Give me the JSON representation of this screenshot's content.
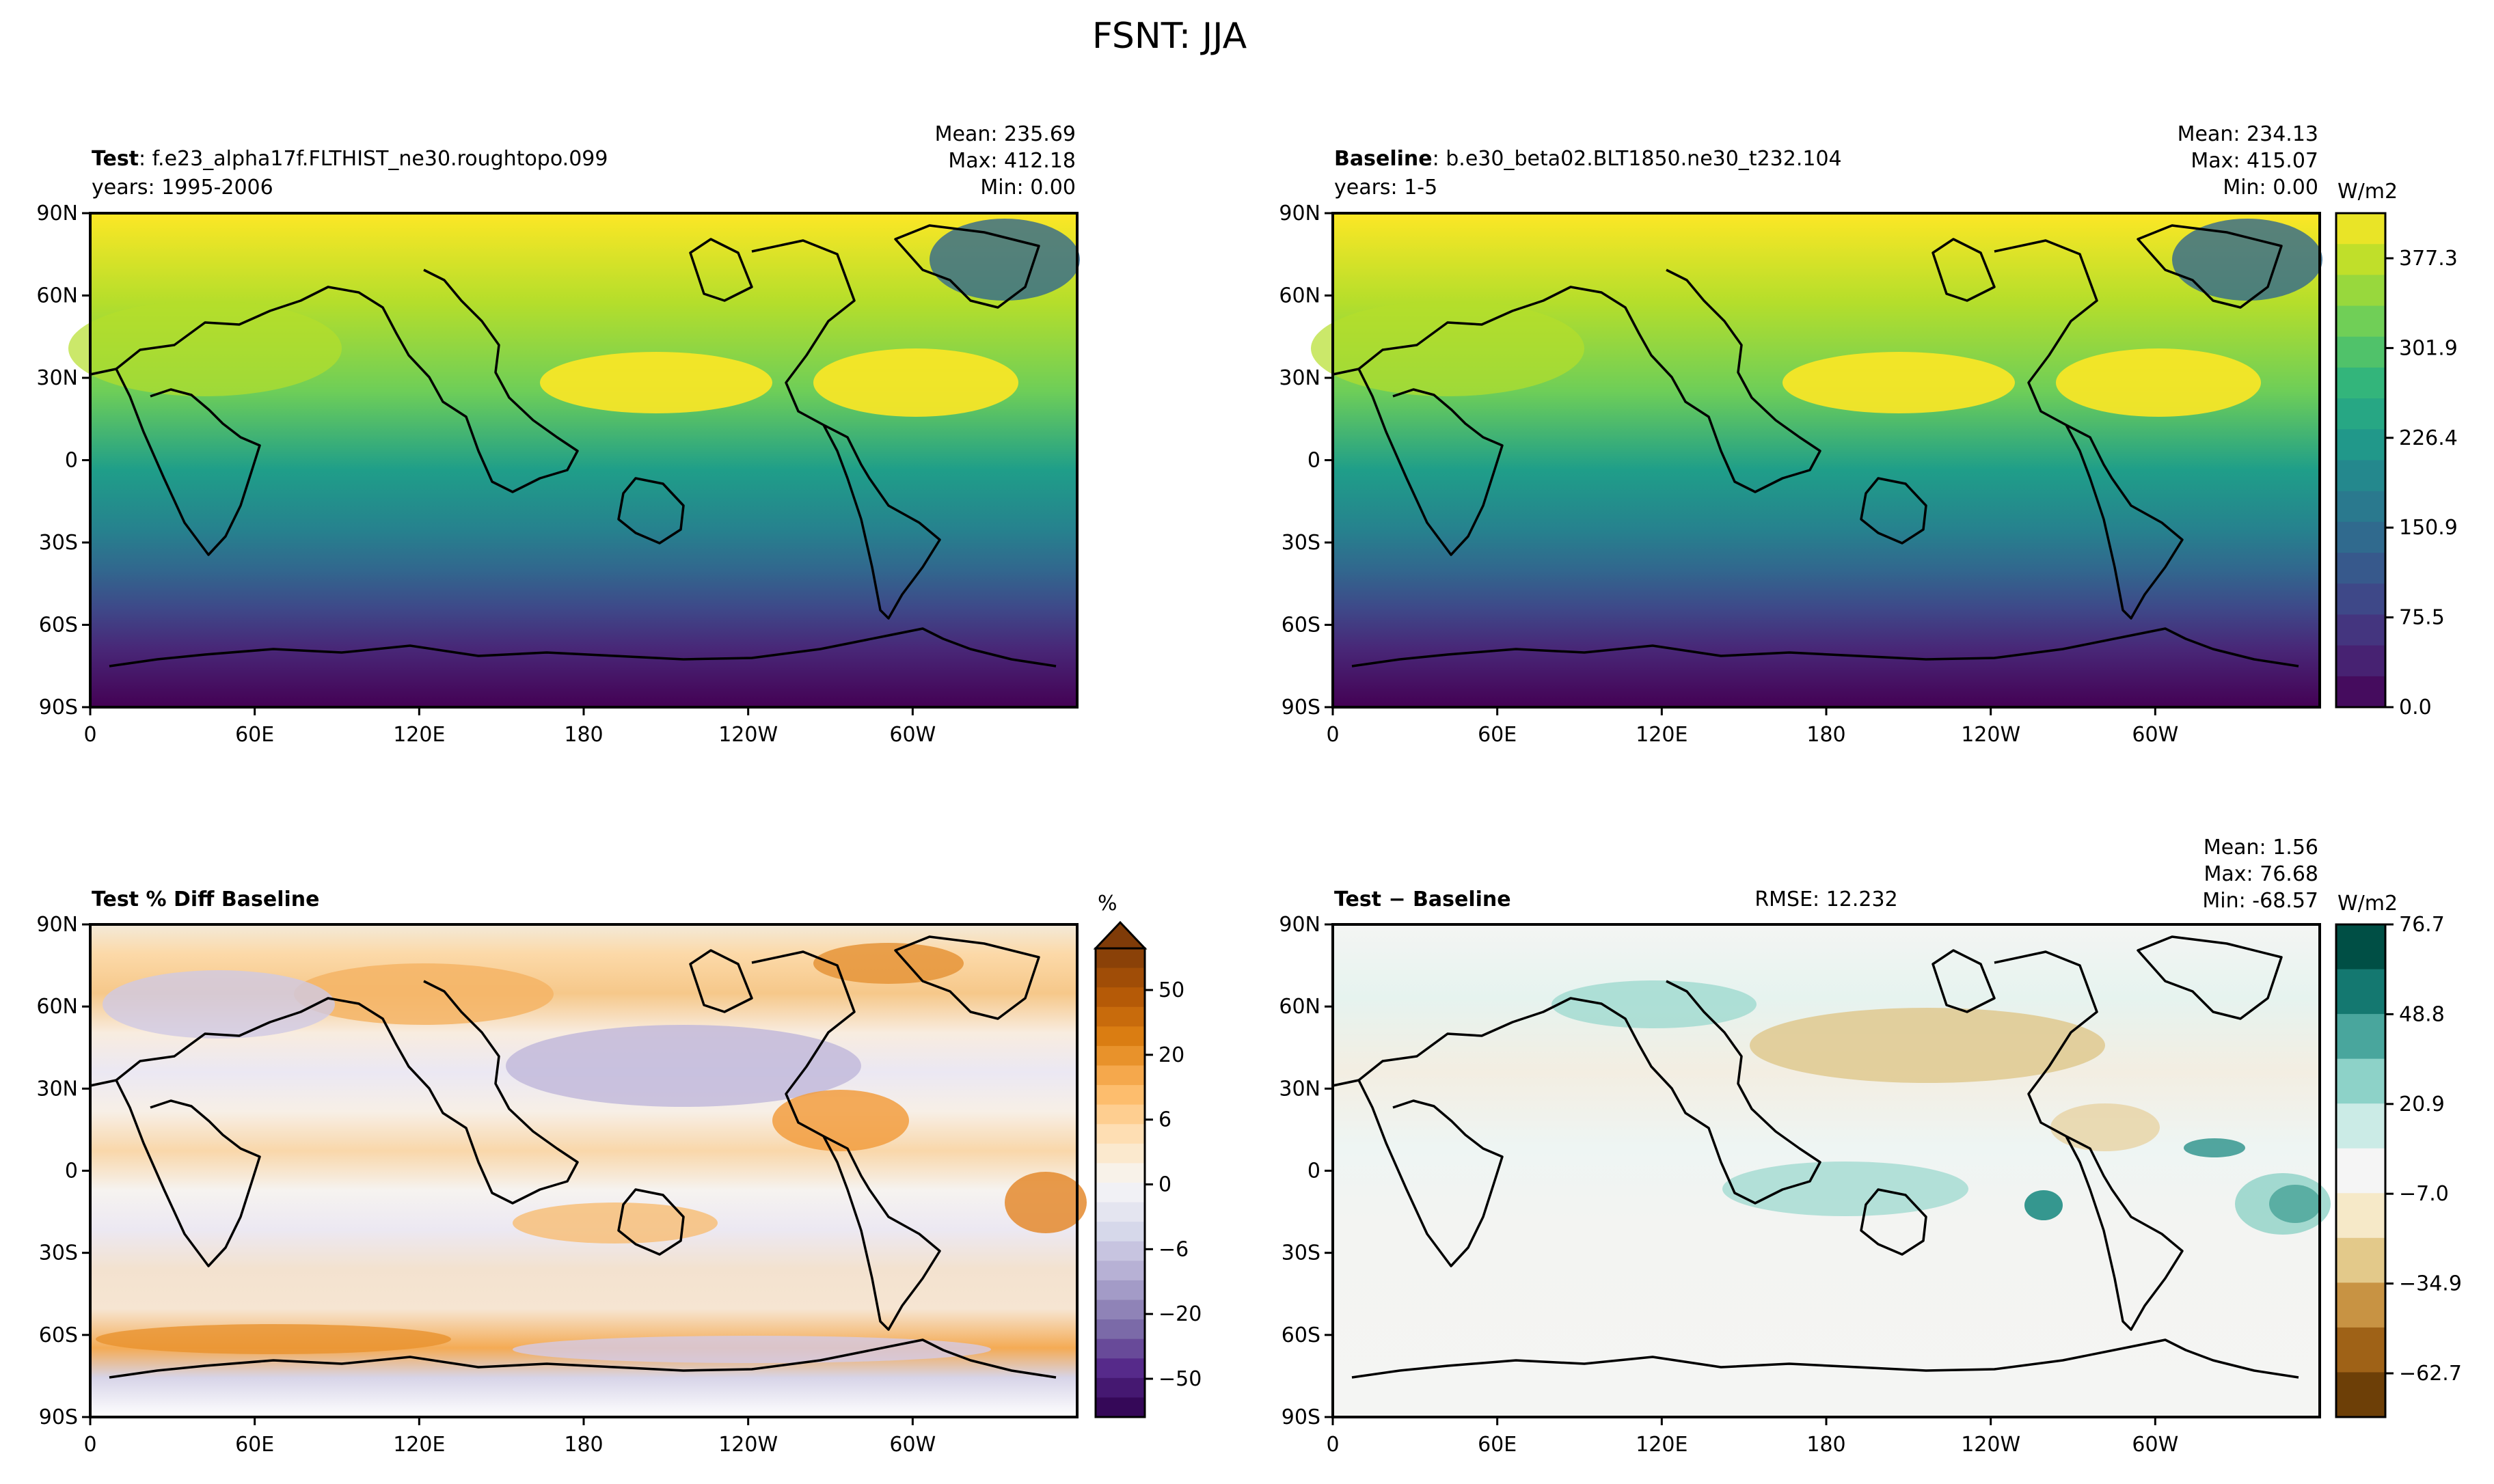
{
  "figure": {
    "title": "FSNT: JJA"
  },
  "colors": {
    "background": "#ffffff",
    "frame": "#000000",
    "coast": "#000000",
    "viridis_ramp": [
      "#440154",
      "#482878",
      "#3e4989",
      "#31688e",
      "#26828e",
      "#1f9e89",
      "#35b779",
      "#6ece58",
      "#b5de2b",
      "#fde725"
    ],
    "puor_ramp": [
      "#2d004b",
      "#542788",
      "#8073ac",
      "#b2abd2",
      "#d8daeb",
      "#f7f7f7",
      "#fee0b6",
      "#fdb863",
      "#e08214",
      "#b35806",
      "#7f3b08"
    ],
    "brbg_ramp": [
      "#543005",
      "#8c510a",
      "#bf812d",
      "#dfc27d",
      "#f6e8c3",
      "#f5f5f5",
      "#c7eae5",
      "#80cdc1",
      "#35978f",
      "#01665e",
      "#003c30"
    ]
  },
  "chart_data": [
    {
      "id": "test",
      "type": "map-contour",
      "title_bold": "Test",
      "title_rest": ": f.e23_alpha17f.FLTHIST_ne30.roughtopo.099",
      "subtitle": "years: 1995-2006",
      "stats": [
        "Mean: 235.69",
        "Max: 412.18",
        "Min:  0.00"
      ],
      "field": "FSNT",
      "units": "W/m2",
      "xticks": [
        "0",
        "60E",
        "120E",
        "180",
        "120W",
        "60W"
      ],
      "yticks": [
        "90N",
        "60N",
        "30N",
        "0",
        "30S",
        "60S",
        "90S"
      ],
      "xlim": [
        0,
        360
      ],
      "ylim": [
        -90,
        90
      ],
      "value_range": [
        0,
        412.18
      ],
      "colormap": "viridis"
    },
    {
      "id": "baseline",
      "type": "map-contour",
      "title_bold": "Baseline",
      "title_rest": ": b.e30_beta02.BLT1850.ne30_t232.104",
      "subtitle": "years: 1-5",
      "stats": [
        "Mean: 234.13",
        "Max: 415.07",
        "Min:  0.00"
      ],
      "field": "FSNT",
      "units": "W/m2",
      "xticks": [
        "0",
        "60E",
        "120E",
        "180",
        "120W",
        "60W"
      ],
      "yticks": [
        "90N",
        "60N",
        "30N",
        "0",
        "30S",
        "60S",
        "90S"
      ],
      "xlim": [
        0,
        360
      ],
      "ylim": [
        -90,
        90
      ],
      "value_range": [
        0,
        415.07
      ],
      "colormap": "viridis",
      "colorbar": {
        "label": "W/m2",
        "ticks": [
          "377.3",
          "301.9",
          "226.4",
          "150.9",
          "75.5",
          "0.0"
        ],
        "levels": 16
      }
    },
    {
      "id": "pctdiff",
      "type": "map-contour",
      "title_bold": "Test % Diff Baseline",
      "title_rest": "",
      "units": "%",
      "xticks": [
        "0",
        "60E",
        "120E",
        "180",
        "120W",
        "60W"
      ],
      "yticks": [
        "90N",
        "60N",
        "30N",
        "0",
        "30S",
        "60S",
        "90S"
      ],
      "xlim": [
        0,
        360
      ],
      "ylim": [
        -90,
        90
      ],
      "colormap": "PuOr_r",
      "colorbar": {
        "label": "%",
        "ticks": [
          "50",
          "20",
          "6",
          "0",
          "−6",
          "−20",
          "−50"
        ],
        "levels": 24,
        "extend": "max"
      }
    },
    {
      "id": "diff",
      "type": "map-contour",
      "title_bold": "Test − Baseline",
      "title_rest": "",
      "rmse": "RMSE: 12.232",
      "stats": [
        "Mean:  1.56",
        "Max: 76.68",
        "Min: -68.57"
      ],
      "units": "W/m2",
      "xticks": [
        "0",
        "60E",
        "120E",
        "180",
        "120W",
        "60W"
      ],
      "yticks": [
        "90N",
        "60N",
        "30N",
        "0",
        "30S",
        "60S",
        "90S"
      ],
      "xlim": [
        0,
        360
      ],
      "ylim": [
        -90,
        90
      ],
      "value_range": [
        -68.57,
        76.68
      ],
      "colormap": "BrBG",
      "colorbar": {
        "label": "W/m2",
        "ticks": [
          "76.7",
          "48.8",
          "20.9",
          "−7.0",
          "−34.9",
          "−62.7"
        ],
        "levels": 11
      }
    }
  ]
}
